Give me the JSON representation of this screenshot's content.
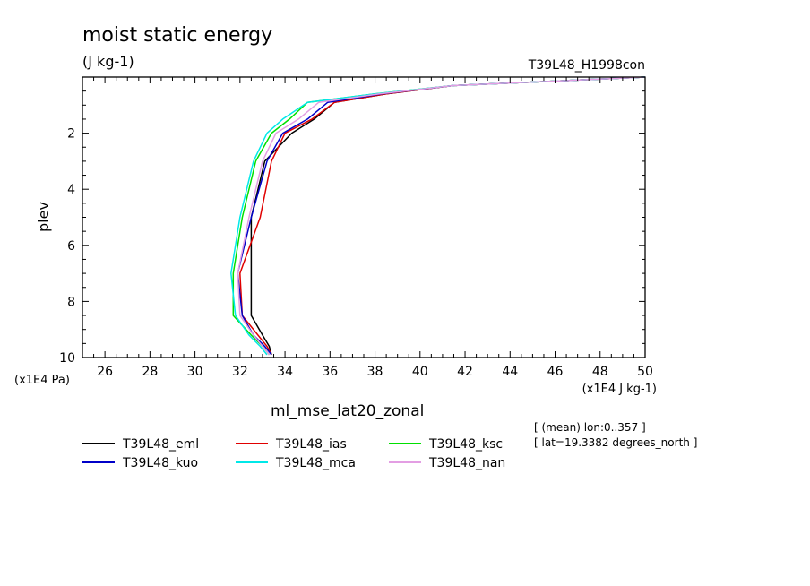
{
  "title": "moist static energy",
  "units": "(J kg-1)",
  "experiment": "T39L48_H1998con",
  "variable": "ml_mse_lat20_zonal",
  "info_lines": [
    "[ (mean) lon:0..357 ]",
    "[ lat=19.3382 degrees_north ]"
  ],
  "chart_data": {
    "type": "line",
    "title": "moist static energy",
    "ylabel": "plev",
    "yunit": "(x1E4 Pa)",
    "xunit": "(x1E4 J kg-1)",
    "xlim": [
      25,
      50
    ],
    "ylim": [
      10,
      0
    ],
    "xticks": [
      26,
      28,
      30,
      32,
      34,
      36,
      38,
      40,
      42,
      44,
      46,
      48,
      50
    ],
    "yticks": [
      2,
      4,
      6,
      8,
      10
    ],
    "grid": false,
    "legend_position": "bottom",
    "series": [
      {
        "name": "T39L48_eml",
        "color": "#000000",
        "x": [
          33.4,
          33.3,
          33.0,
          32.5,
          32.5,
          32.5,
          33.1,
          34.3,
          35.3,
          36.2,
          38.5,
          41.5,
          50.0
        ],
        "y": [
          9.9,
          9.6,
          9.2,
          8.5,
          7.0,
          5.0,
          3.0,
          2.0,
          1.5,
          0.9,
          0.6,
          0.3,
          0.0
        ]
      },
      {
        "name": "T39L48_ias",
        "color": "#e00000",
        "x": [
          33.4,
          33.2,
          32.8,
          32.1,
          32.0,
          32.9,
          33.4,
          34.0,
          35.2,
          36.2,
          38.5,
          41.5,
          50.0
        ],
        "y": [
          9.9,
          9.6,
          9.2,
          8.5,
          7.0,
          5.0,
          3.0,
          2.0,
          1.5,
          0.9,
          0.6,
          0.3,
          0.0
        ]
      },
      {
        "name": "T39L48_ksc",
        "color": "#00e000",
        "x": [
          33.3,
          33.0,
          32.5,
          31.7,
          31.7,
          32.1,
          32.7,
          33.4,
          34.2,
          35.0,
          38.0,
          41.5,
          50.0
        ],
        "y": [
          9.9,
          9.6,
          9.2,
          8.5,
          7.0,
          5.0,
          3.0,
          2.0,
          1.5,
          0.9,
          0.6,
          0.3,
          0.0
        ]
      },
      {
        "name": "T39L48_kuo",
        "color": "#0000c8",
        "x": [
          33.4,
          33.1,
          32.6,
          32.1,
          31.9,
          32.5,
          33.2,
          33.9,
          35.0,
          35.9,
          38.3,
          41.5,
          50.0
        ],
        "y": [
          9.9,
          9.6,
          9.2,
          8.5,
          7.0,
          5.0,
          3.0,
          2.0,
          1.5,
          0.9,
          0.6,
          0.3,
          0.0
        ]
      },
      {
        "name": "T39L48_mca",
        "color": "#00e8e8",
        "x": [
          33.2,
          32.9,
          32.4,
          31.8,
          31.6,
          32.0,
          32.6,
          33.2,
          33.9,
          35.0,
          38.0,
          41.5,
          50.0
        ],
        "y": [
          9.9,
          9.6,
          9.2,
          8.5,
          7.0,
          5.0,
          3.0,
          2.0,
          1.5,
          0.9,
          0.6,
          0.3,
          0.0
        ]
      },
      {
        "name": "T39L48_nan",
        "color": "#e39ee3",
        "x": [
          33.3,
          33.0,
          32.6,
          32.0,
          31.9,
          32.4,
          33.0,
          33.6,
          34.6,
          35.5,
          38.2,
          41.5,
          50.0
        ],
        "y": [
          9.9,
          9.6,
          9.2,
          8.5,
          7.0,
          5.0,
          3.0,
          2.0,
          1.5,
          0.9,
          0.6,
          0.3,
          0.0
        ]
      }
    ]
  }
}
